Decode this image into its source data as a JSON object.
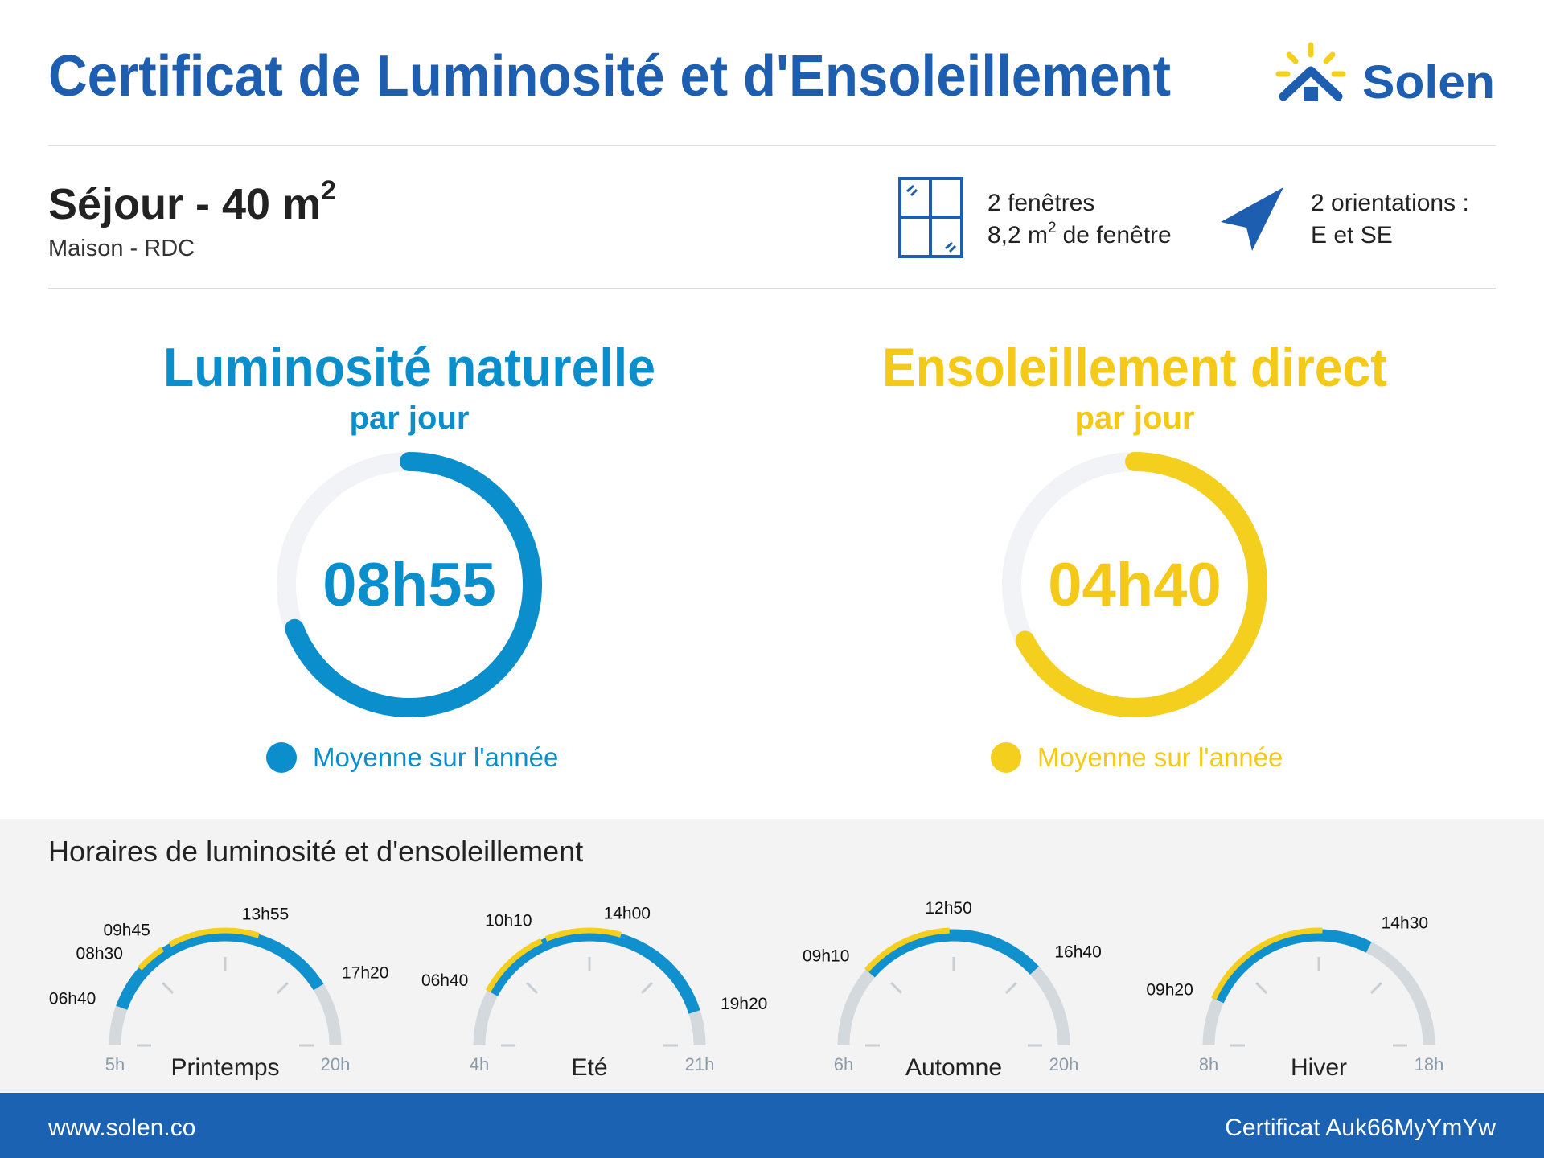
{
  "header": {
    "title": "Certificat de Luminosité et d'Ensoleillement",
    "logo": "Solen"
  },
  "room": {
    "name": "Séjour - 40 m",
    "name_sup": "2",
    "detail": "Maison - RDC"
  },
  "windows": {
    "count": "2 fenêtres",
    "area": "8,2 m",
    "area_sup": "2",
    "area_suffix": "de fenêtre"
  },
  "orientation": {
    "count": "2 orientations :",
    "directions": "E et SE"
  },
  "luminosite": {
    "title": "Luminosité naturelle",
    "subtitle": "par jour",
    "value": "08h55",
    "legend": "Moyenne sur l'année"
  },
  "ensoleillement": {
    "title": "Ensoleillement direct",
    "subtitle": "par jour",
    "value": "04h40",
    "legend": "Moyenne sur l'année"
  },
  "schedule": {
    "title": "Horaires de luminosité et d'ensoleillement",
    "seasons": [
      {
        "name": "Printemps",
        "min": {
          "value": 5,
          "label": "5h"
        },
        "max": {
          "value": 20,
          "label": "20h"
        },
        "light": [
          {
            "value": 6.667,
            "label": "06h40"
          },
          {
            "value": 17.333,
            "label": "17h20"
          }
        ],
        "sun": [
          [
            {
              "value": 8.5,
              "label": "08h30"
            },
            {
              "value": 9.75,
              "label": "09h45"
            }
          ],
          [
            10.1,
            {
              "value": 13.917,
              "label": "13h55"
            }
          ]
        ]
      },
      {
        "name": "Eté",
        "min": {
          "value": 4,
          "label": "4h"
        },
        "max": {
          "value": 21,
          "label": "21h"
        },
        "light": [
          {
            "value": 6.667,
            "label": "06h40"
          },
          {
            "value": 19.333,
            "label": "19h20"
          }
        ],
        "sun": [
          [
            6.667,
            {
              "value": 10.167,
              "label": "10h10"
            }
          ],
          [
            10.4,
            {
              "value": 14,
              "label": "14h00"
            }
          ]
        ]
      },
      {
        "name": "Automne",
        "min": {
          "value": 6,
          "label": "6h"
        },
        "max": {
          "value": 20,
          "label": "20h"
        },
        "light": [
          {
            "value": 9.167,
            "label": "09h10"
          },
          {
            "value": 16.667,
            "label": "16h40"
          }
        ],
        "sun": [
          [
            9.167,
            {
              "value": 12.833,
              "label": "12h50"
            }
          ]
        ]
      },
      {
        "name": "Hiver",
        "min": {
          "value": 8,
          "label": "8h"
        },
        "max": {
          "value": 18,
          "label": "18h"
        },
        "light": [
          {
            "value": 9.333,
            "label": "09h20"
          },
          {
            "value": 14.5,
            "label": "14h30"
          }
        ],
        "sun": [
          [
            9.333,
            13.1
          ]
        ]
      }
    ]
  },
  "footer": {
    "website": "www.solen.co",
    "certificate": "Certificat Auk66MyYmYw"
  }
}
